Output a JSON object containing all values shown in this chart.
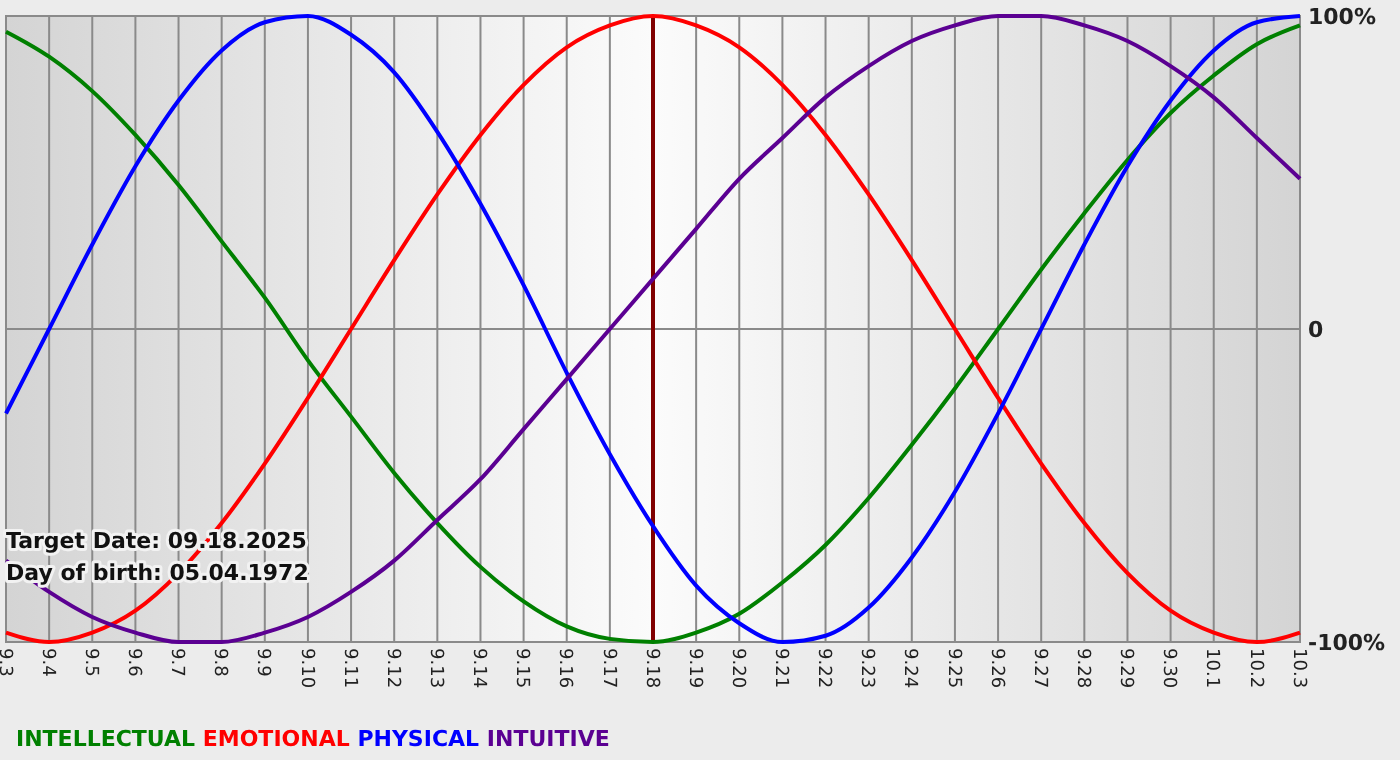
{
  "chart_data": {
    "type": "line",
    "categories": [
      "9.3",
      "9.4",
      "9.5",
      "9.6",
      "9.7",
      "9.8",
      "9.9",
      "9.10",
      "9.11",
      "9.12",
      "9.13",
      "9.14",
      "9.15",
      "9.16",
      "9.17",
      "9.18",
      "9.19",
      "9.20",
      "9.21",
      "9.22",
      "9.23",
      "9.24",
      "9.25",
      "9.26",
      "9.27",
      "9.28",
      "9.29",
      "9.30",
      "10.1",
      "10.2",
      "10.3"
    ],
    "series": [
      {
        "name": "INTELLECTUAL",
        "color": "#008000",
        "values": [
          95,
          87,
          76,
          62,
          46,
          28,
          10,
          -10,
          -28,
          -46,
          -62,
          -76,
          -87,
          -95,
          -99,
          -100,
          -97,
          -91,
          -81,
          -69,
          -54,
          -37,
          -19,
          0,
          19,
          37,
          54,
          69,
          81,
          91,
          97
        ]
      },
      {
        "name": "EMOTIONAL",
        "color": "#ff0000",
        "values": [
          -97,
          -100,
          -97,
          -90,
          -78,
          -62,
          -43,
          -22,
          0,
          22,
          43,
          62,
          78,
          90,
          97,
          100,
          97,
          90,
          78,
          62,
          43,
          22,
          0,
          -22,
          -43,
          -62,
          -78,
          -90,
          -97,
          -100,
          -97
        ]
      },
      {
        "name": "PHYSICAL",
        "color": "#0000ff",
        "values": [
          -27,
          0,
          27,
          52,
          73,
          89,
          98,
          100,
          94,
          82,
          63,
          40,
          14,
          -14,
          -40,
          -63,
          -82,
          -94,
          -100,
          -98,
          -89,
          -73,
          -52,
          -27,
          0,
          27,
          52,
          73,
          89,
          98,
          100
        ]
      },
      {
        "name": "INTUITIVE",
        "color": "#5b0092",
        "values": [
          -74,
          -84,
          -92,
          -97,
          -100,
          -100,
          -97,
          -92,
          -84,
          -74,
          -61,
          -48,
          -32,
          -16,
          0,
          16,
          32,
          48,
          61,
          74,
          84,
          92,
          97,
          100,
          100,
          97,
          92,
          84,
          74,
          61,
          48
        ]
      }
    ],
    "ylim": [
      -100,
      100
    ],
    "yticks": [
      {
        "value": 100,
        "label": "100%"
      },
      0,
      {
        "value": -100,
        "label": "-100%"
      }
    ],
    "grid": true,
    "legend": "bottom left",
    "marker": "none",
    "line_style": "solid",
    "ref_lines": [
      {
        "axis": "x",
        "value": "9.18",
        "color": "#800000"
      }
    ],
    "annotations": [
      "Target Date: 09.18.2025",
      "Day of birth: 05.04.1972"
    ]
  }
}
